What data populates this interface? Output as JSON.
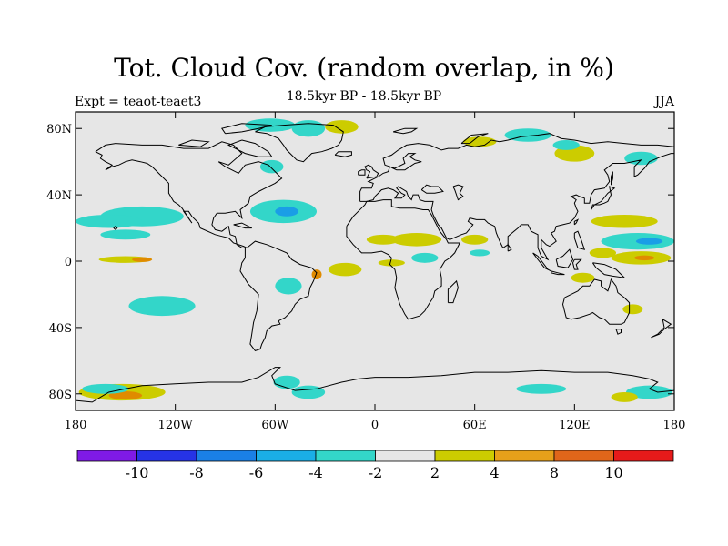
{
  "title": "Tot. Cloud Cov. (random overlap, in %)",
  "subtitle": "18.5kyr BP - 18.5kyr BP",
  "left_label": "Expt = teaot-teaet3",
  "right_label": "JJA",
  "map": {
    "lon_range": [
      -180,
      180
    ],
    "lat_range": [
      -90,
      90
    ],
    "background_color": "#e6e6e6",
    "coastline_color": "#000000",
    "x_ticks": [
      {
        "lon": -180,
        "label": "180"
      },
      {
        "lon": -120,
        "label": "120W"
      },
      {
        "lon": -60,
        "label": "60W"
      },
      {
        "lon": 0,
        "label": "0"
      },
      {
        "lon": 60,
        "label": "60E"
      },
      {
        "lon": 120,
        "label": "120E"
      },
      {
        "lon": 180,
        "label": "180"
      }
    ],
    "y_ticks": [
      {
        "lat": 80,
        "label": "80N"
      },
      {
        "lat": 40,
        "label": "40N"
      },
      {
        "lat": 0,
        "label": "0"
      },
      {
        "lat": -40,
        "label": "40S"
      },
      {
        "lat": -80,
        "label": "80S"
      }
    ],
    "anomaly_blobs": [
      {
        "lon": -140,
        "lat": 27,
        "rlon": 25,
        "rlat": 6,
        "color": "#33d6c9"
      },
      {
        "lon": -160,
        "lat": 24,
        "rlon": 20,
        "rlat": 4,
        "color": "#33d6c9"
      },
      {
        "lon": -150,
        "lat": 16,
        "rlon": 15,
        "rlat": 3,
        "color": "#33d6c9"
      },
      {
        "lon": -128,
        "lat": -27,
        "rlon": 20,
        "rlat": 6,
        "color": "#33d6c9"
      },
      {
        "lon": -150,
        "lat": 1,
        "rlon": 16,
        "rlat": 2,
        "color": "#cccc00"
      },
      {
        "lon": -140,
        "lat": 1,
        "rlon": 6,
        "rlat": 1.5,
        "color": "#e08b00"
      },
      {
        "lon": -152,
        "lat": -79,
        "rlon": 26,
        "rlat": 5,
        "color": "#cccc00"
      },
      {
        "lon": -150,
        "lat": -81,
        "rlon": 10,
        "rlat": 2.5,
        "color": "#e08b00"
      },
      {
        "lon": -162,
        "lat": -77,
        "rlon": 14,
        "rlat": 3,
        "color": "#33d6c9"
      },
      {
        "lon": -55,
        "lat": 30,
        "rlon": 20,
        "rlat": 7,
        "color": "#33d6c9"
      },
      {
        "lon": -53,
        "lat": 30,
        "rlon": 7,
        "rlat": 3,
        "color": "#1a9ee6"
      },
      {
        "lon": -62,
        "lat": 57,
        "rlon": 7,
        "rlat": 4,
        "color": "#33d6c9"
      },
      {
        "lon": -63,
        "lat": 82,
        "rlon": 15,
        "rlat": 4,
        "color": "#33d6c9"
      },
      {
        "lon": -40,
        "lat": 80,
        "rlon": 10,
        "rlat": 5,
        "color": "#33d6c9"
      },
      {
        "lon": -20,
        "lat": 81,
        "rlon": 10,
        "rlat": 4,
        "color": "#cccc00"
      },
      {
        "lon": -52,
        "lat": -15,
        "rlon": 8,
        "rlat": 5,
        "color": "#33d6c9"
      },
      {
        "lon": -18,
        "lat": -5,
        "rlon": 10,
        "rlat": 4,
        "color": "#cccc00"
      },
      {
        "lon": -35,
        "lat": -8,
        "rlon": 3,
        "rlat": 3,
        "color": "#e08b00"
      },
      {
        "lon": -53,
        "lat": -73,
        "rlon": 8,
        "rlat": 4,
        "color": "#33d6c9"
      },
      {
        "lon": -40,
        "lat": -79,
        "rlon": 10,
        "rlat": 4,
        "color": "#33d6c9"
      },
      {
        "lon": 25,
        "lat": 13,
        "rlon": 15,
        "rlat": 4,
        "color": "#cccc00"
      },
      {
        "lon": 5,
        "lat": 13,
        "rlon": 10,
        "rlat": 3,
        "color": "#cccc00"
      },
      {
        "lon": 10,
        "lat": -1,
        "rlon": 8,
        "rlat": 2,
        "color": "#cccc00"
      },
      {
        "lon": 30,
        "lat": 2,
        "rlon": 8,
        "rlat": 3,
        "color": "#33d6c9"
      },
      {
        "lon": 60,
        "lat": 13,
        "rlon": 8,
        "rlat": 3,
        "color": "#cccc00"
      },
      {
        "lon": 63,
        "lat": 5,
        "rlon": 6,
        "rlat": 2,
        "color": "#33d6c9"
      },
      {
        "lon": 63,
        "lat": 72,
        "rlon": 10,
        "rlat": 3,
        "color": "#cccc00"
      },
      {
        "lon": 92,
        "lat": 76,
        "rlon": 14,
        "rlat": 4,
        "color": "#33d6c9"
      },
      {
        "lon": 120,
        "lat": 65,
        "rlon": 12,
        "rlat": 5,
        "color": "#cccc00"
      },
      {
        "lon": 115,
        "lat": 70,
        "rlon": 8,
        "rlat": 3,
        "color": "#33d6c9"
      },
      {
        "lon": 160,
        "lat": 62,
        "rlon": 10,
        "rlat": 4,
        "color": "#33d6c9"
      },
      {
        "lon": 150,
        "lat": 24,
        "rlon": 20,
        "rlat": 4,
        "color": "#cccc00"
      },
      {
        "lon": 158,
        "lat": 12,
        "rlon": 22,
        "rlat": 5,
        "color": "#33d6c9"
      },
      {
        "lon": 165,
        "lat": 12,
        "rlon": 8,
        "rlat": 2,
        "color": "#1a9ee6"
      },
      {
        "lon": 160,
        "lat": 2,
        "rlon": 18,
        "rlat": 4,
        "color": "#cccc00"
      },
      {
        "lon": 162,
        "lat": 2,
        "rlon": 6,
        "rlat": 1.5,
        "color": "#e08b00"
      },
      {
        "lon": 137,
        "lat": 5,
        "rlon": 8,
        "rlat": 3,
        "color": "#cccc00"
      },
      {
        "lon": 125,
        "lat": -10,
        "rlon": 7,
        "rlat": 3,
        "color": "#cccc00"
      },
      {
        "lon": 155,
        "lat": -29,
        "rlon": 6,
        "rlat": 3,
        "color": "#cccc00"
      },
      {
        "lon": 100,
        "lat": -77,
        "rlon": 15,
        "rlat": 3,
        "color": "#33d6c9"
      },
      {
        "lon": 165,
        "lat": -79,
        "rlon": 14,
        "rlat": 4,
        "color": "#33d6c9"
      },
      {
        "lon": 150,
        "lat": -82,
        "rlon": 8,
        "rlat": 3,
        "color": "#cccc00"
      }
    ]
  },
  "colorbar": {
    "colors": [
      "#7f1ae6",
      "#2633e6",
      "#1a80e6",
      "#1aaee6",
      "#33d6c9",
      "#e6e6e6",
      "#cccc00",
      "#e6a01a",
      "#e0661a",
      "#e61a1a"
    ],
    "labels": [
      "-10",
      "-8",
      "-6",
      "-4",
      "-2",
      "2",
      "4",
      "8",
      "10"
    ]
  }
}
